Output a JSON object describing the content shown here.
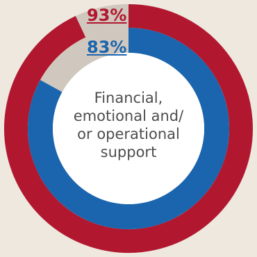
{
  "chart_data": {
    "type": "pie",
    "center_label": "Financial, emotional and/ or operational support",
    "series": [
      {
        "name": "",
        "ring": "outer",
        "value": 93,
        "label": "93%",
        "color": "#b1182f",
        "remainder_color": "#d0c8be"
      },
      {
        "name": "",
        "ring": "inner",
        "value": 83,
        "label": "83%",
        "color": "#1a65ae",
        "remainder_color": "#d0c8be"
      }
    ]
  }
}
